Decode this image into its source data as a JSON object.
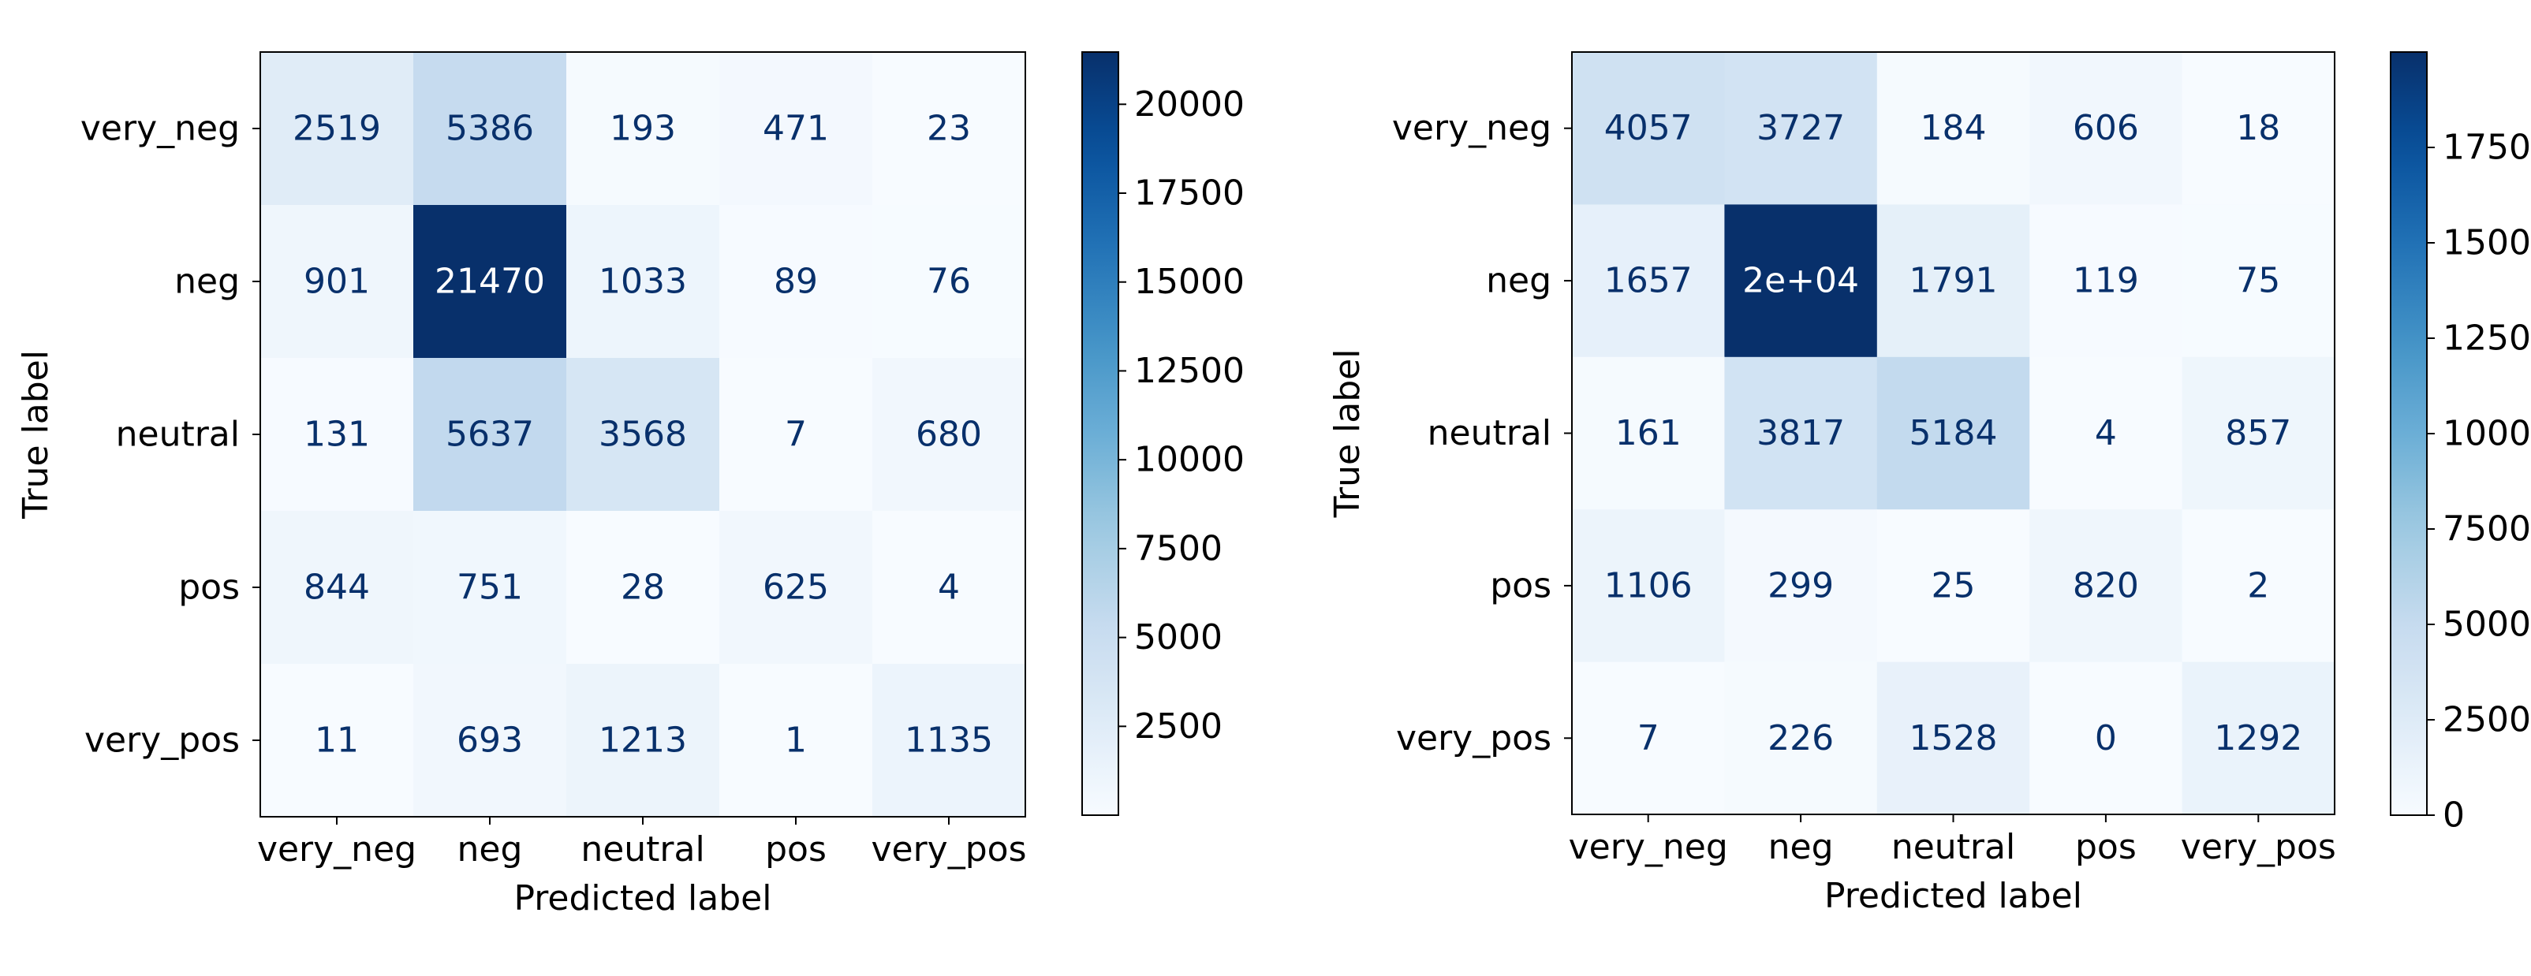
{
  "chart_data": [
    {
      "type": "heatmap",
      "title": "",
      "xlabel": "Predicted label",
      "ylabel": "True label",
      "x_categories": [
        "very_neg",
        "neg",
        "neutral",
        "pos",
        "very_pos"
      ],
      "y_categories": [
        "very_neg",
        "neg",
        "neutral",
        "pos",
        "very_pos"
      ],
      "values": [
        [
          2519,
          5386,
          193,
          471,
          23
        ],
        [
          901,
          21470,
          1033,
          89,
          76
        ],
        [
          131,
          5637,
          3568,
          7,
          680
        ],
        [
          844,
          751,
          28,
          625,
          4
        ],
        [
          11,
          693,
          1213,
          1,
          1135
        ]
      ],
      "cell_labels": [
        [
          "2519",
          "5386",
          "193",
          "471",
          "23"
        ],
        [
          "901",
          "21470",
          "1033",
          "89",
          "76"
        ],
        [
          "131",
          "5637",
          "3568",
          "7",
          "680"
        ],
        [
          "844",
          "751",
          "28",
          "625",
          "4"
        ],
        [
          "11",
          "693",
          "1213",
          "1",
          "1135"
        ]
      ],
      "colormap": "Blues",
      "color_range": [
        1,
        21470
      ],
      "colorbar_ticks": [
        2500,
        5000,
        7500,
        10000,
        12500,
        15000,
        17500,
        20000
      ],
      "colorbar_tick_labels": [
        "2500",
        "5000",
        "7500",
        "10000",
        "12500",
        "15000",
        "17500",
        "20000"
      ],
      "grid": false,
      "legend": "colorbar-right"
    },
    {
      "type": "heatmap",
      "title": "",
      "xlabel": "Predicted label",
      "ylabel": "True label",
      "x_categories": [
        "very_neg",
        "neg",
        "neutral",
        "pos",
        "very_pos"
      ],
      "y_categories": [
        "very_neg",
        "neg",
        "neutral",
        "pos",
        "very_pos"
      ],
      "values": [
        [
          4057,
          3727,
          184,
          606,
          18
        ],
        [
          1657,
          20000,
          1791,
          119,
          75
        ],
        [
          161,
          3817,
          5184,
          4,
          857
        ],
        [
          1106,
          299,
          25,
          820,
          2
        ],
        [
          7,
          226,
          1528,
          0,
          1292
        ]
      ],
      "cell_labels": [
        [
          "4057",
          "3727",
          "184",
          "606",
          "18"
        ],
        [
          "1657",
          "2e+04",
          "1791",
          "119",
          "75"
        ],
        [
          "161",
          "3817",
          "5184",
          "4",
          "857"
        ],
        [
          "1106",
          "299",
          "25",
          "820",
          "2"
        ],
        [
          "7",
          "226",
          "1528",
          "0",
          "1292"
        ]
      ],
      "colormap": "Blues",
      "color_range": [
        0,
        20000
      ],
      "colorbar_ticks": [
        0,
        2500,
        5000,
        7500,
        10000,
        12500,
        15000,
        17500
      ],
      "colorbar_tick_labels": [
        "0",
        "2500",
        "5000",
        "7500",
        "10000",
        "12500",
        "15000",
        "17500"
      ],
      "grid": false,
      "legend": "colorbar-right"
    }
  ]
}
